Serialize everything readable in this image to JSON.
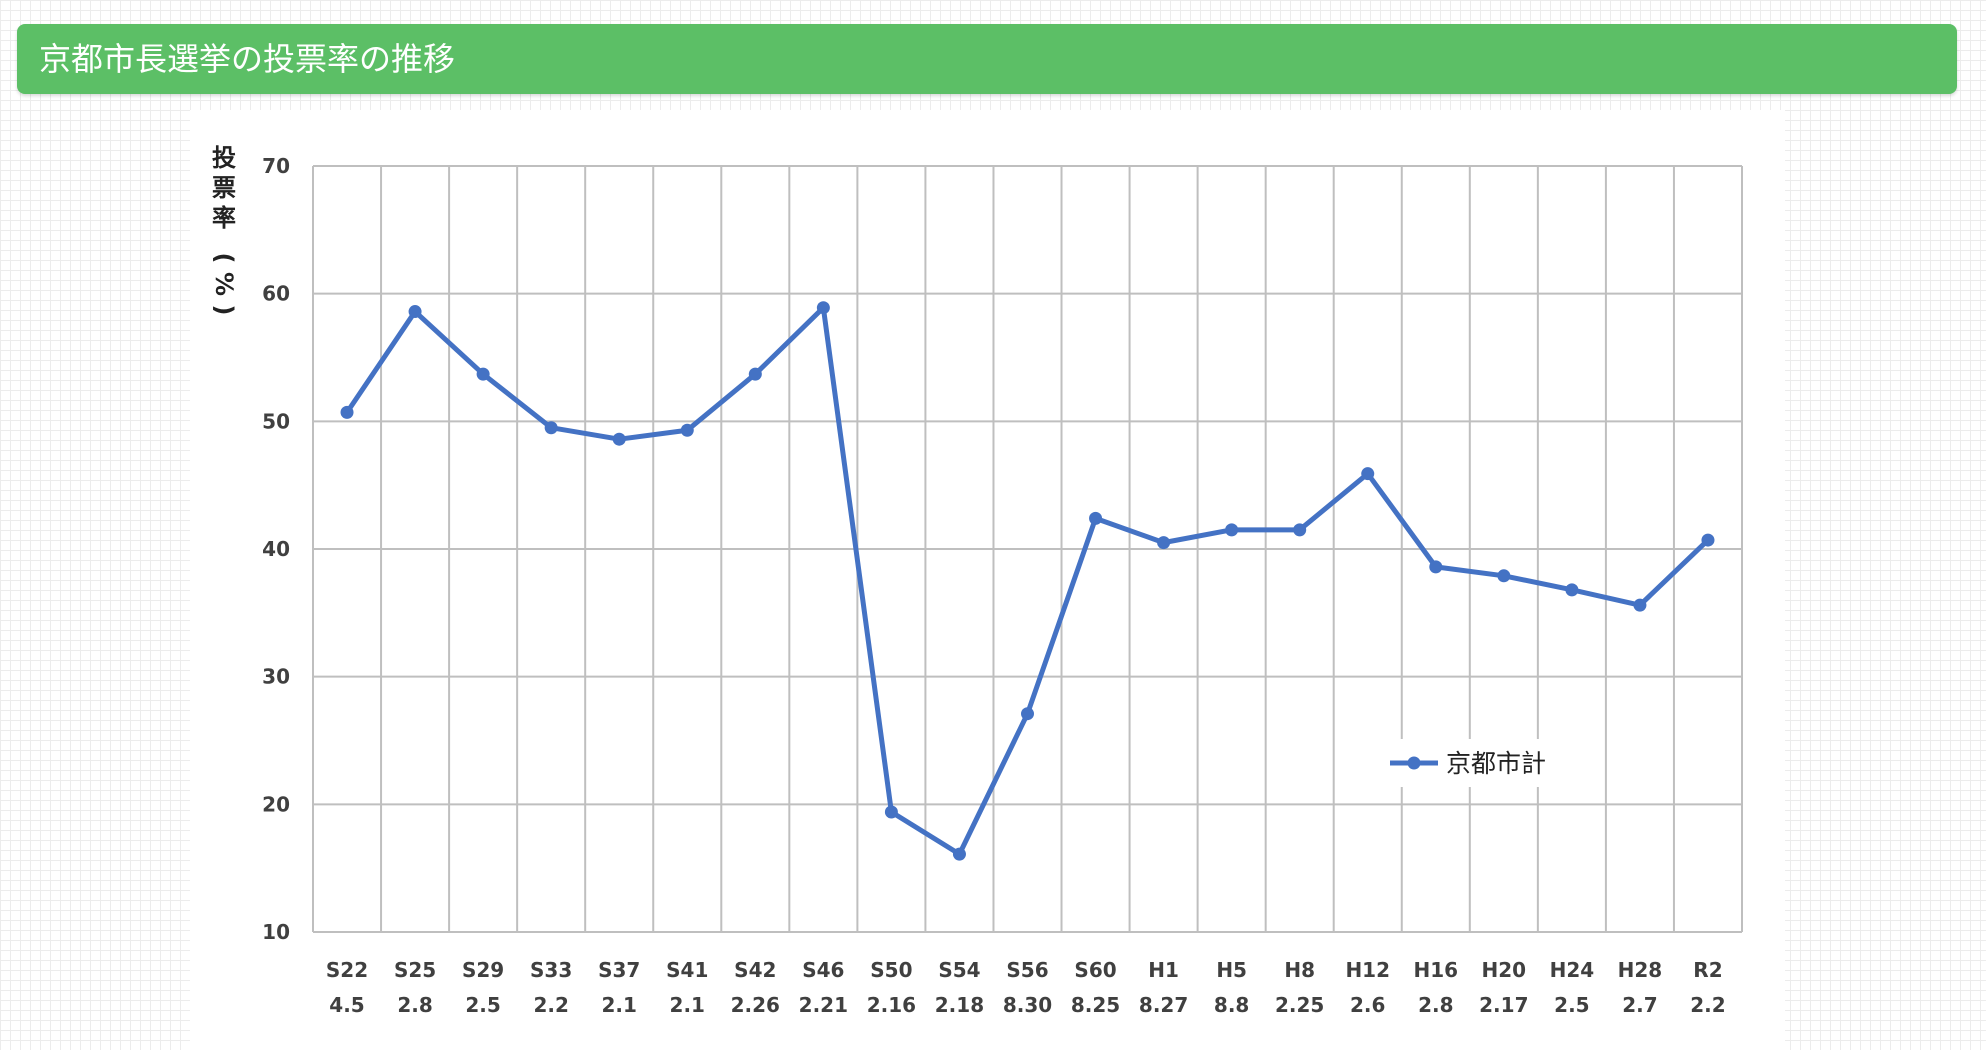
{
  "page": {
    "title": "京都市長選挙の投票率の推移"
  },
  "colors": {
    "header_bg": "#5cbf66",
    "series_line": "#4472c4",
    "gridline": "#bfbfbf"
  },
  "chart_data": {
    "type": "line",
    "title": "",
    "xlabel": "",
    "ylabel": "投票率(%)",
    "ylim": [
      10,
      70
    ],
    "yticks": [
      10,
      20,
      30,
      40,
      50,
      60,
      70
    ],
    "grid": true,
    "legend": "right",
    "categories": [
      [
        "S22",
        "4.5"
      ],
      [
        "S25",
        "2.8"
      ],
      [
        "S29",
        "2.5"
      ],
      [
        "S33",
        "2.2"
      ],
      [
        "S37",
        "2.1"
      ],
      [
        "S41",
        "2.1"
      ],
      [
        "S42",
        "2.26"
      ],
      [
        "S46",
        "2.21"
      ],
      [
        "S50",
        "2.16"
      ],
      [
        "S54",
        "2.18"
      ],
      [
        "S56",
        "8.30"
      ],
      [
        "S60",
        "8.25"
      ],
      [
        "H1",
        "8.27"
      ],
      [
        "H5",
        "8.8"
      ],
      [
        "H8",
        "2.25"
      ],
      [
        "H12",
        "2.6"
      ],
      [
        "H16",
        "2.8"
      ],
      [
        "H20",
        "2.17"
      ],
      [
        "H24",
        "2.5"
      ],
      [
        "H28",
        "2.7"
      ],
      [
        "R2",
        "2.2"
      ]
    ],
    "series": [
      {
        "name": "京都市計",
        "values": [
          50.7,
          58.6,
          53.7,
          49.5,
          48.6,
          49.3,
          53.7,
          58.9,
          19.4,
          16.1,
          27.1,
          42.4,
          40.5,
          41.5,
          41.5,
          45.9,
          38.6,
          37.9,
          36.8,
          35.6,
          40.7
        ]
      }
    ]
  }
}
